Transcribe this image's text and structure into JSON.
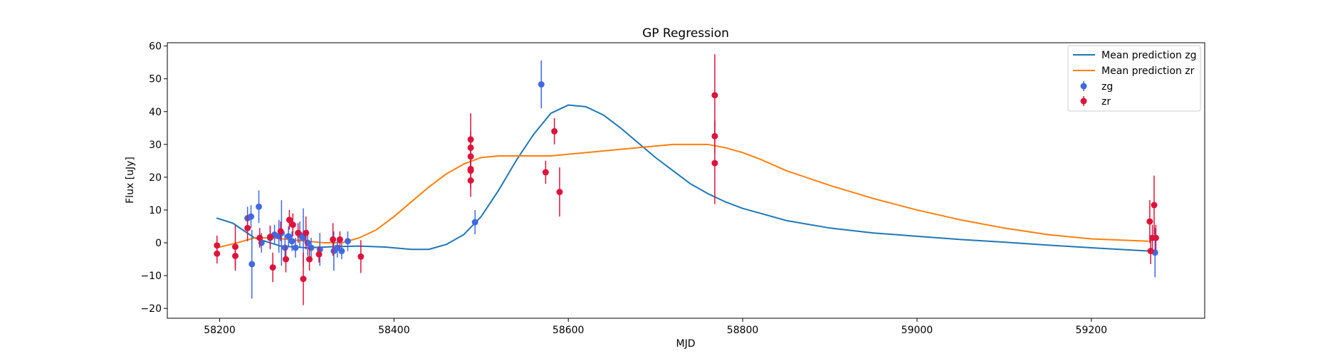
{
  "chart_data": {
    "type": "line",
    "title": "GP Regression",
    "xlabel": "MJD",
    "ylabel": "Flux [uJy]",
    "xlim": [
      58140,
      59330
    ],
    "ylim": [
      -23,
      61
    ],
    "xticks": [
      58200,
      58400,
      58600,
      58800,
      59000,
      59200
    ],
    "yticks": [
      -20,
      -10,
      0,
      10,
      20,
      30,
      40,
      50,
      60
    ],
    "grid": false,
    "legend_position": "top-right",
    "colors": {
      "mean_zg": "#1f77b4",
      "mean_zr": "#ff7f0e",
      "points_zg": "#4169e1",
      "points_zr": "#dc143c"
    },
    "series": [
      {
        "name": "Mean prediction zg",
        "kind": "line",
        "color": "#1f77b4",
        "x": [
          58197,
          58215,
          58240,
          58270,
          58300,
          58330,
          58360,
          58390,
          58420,
          58440,
          58460,
          58480,
          58500,
          58520,
          58540,
          58560,
          58580,
          58600,
          58620,
          58640,
          58660,
          58680,
          58700,
          58720,
          58740,
          58760,
          58780,
          58800,
          58850,
          58900,
          58950,
          59000,
          59050,
          59100,
          59150,
          59200,
          59265
        ],
        "y": [
          7.5,
          6,
          1.5,
          -1,
          -1.5,
          -1.2,
          -1,
          -1.3,
          -2,
          -2,
          -0.5,
          2.5,
          8,
          16,
          25,
          33,
          39.5,
          42,
          41.5,
          39,
          35,
          30.5,
          26,
          22,
          18,
          15,
          12.5,
          10.5,
          6.8,
          4.5,
          3,
          2,
          1,
          0.2,
          -0.7,
          -1.5,
          -2.5
        ]
      },
      {
        "name": "Mean prediction zr",
        "kind": "line",
        "color": "#ff7f0e",
        "x": [
          58197,
          58220,
          58240,
          58260,
          58280,
          58300,
          58320,
          58340,
          58360,
          58380,
          58400,
          58420,
          58440,
          58460,
          58480,
          58500,
          58520,
          58540,
          58560,
          58580,
          58600,
          58620,
          58640,
          58660,
          58680,
          58700,
          58720,
          58740,
          58760,
          58780,
          58800,
          58820,
          58850,
          58900,
          58950,
          59000,
          59050,
          59100,
          59150,
          59200,
          59265
        ],
        "y": [
          -1.5,
          0,
          1.5,
          1.5,
          1,
          0.5,
          0,
          0,
          1.5,
          4,
          8,
          12.5,
          17,
          21,
          24,
          26,
          26.5,
          26.5,
          26.5,
          26.5,
          27,
          27.5,
          28,
          28.5,
          29,
          29.5,
          30,
          30,
          30,
          29,
          27.5,
          25.5,
          22,
          17.5,
          13.5,
          10,
          7,
          4.5,
          2.5,
          1.2,
          0.5
        ]
      },
      {
        "name": "zg",
        "kind": "errorbar",
        "color": "#4169e1",
        "points": [
          {
            "x": 58232,
            "y": 7.5,
            "err": 3.5
          },
          {
            "x": 58236,
            "y": 8,
            "err": 3.5
          },
          {
            "x": 58237,
            "y": -6.5,
            "err": 10.5
          },
          {
            "x": 58245,
            "y": 11,
            "err": 5
          },
          {
            "x": 58248,
            "y": 0,
            "err": 3
          },
          {
            "x": 58258,
            "y": 1.5,
            "err": 3.5
          },
          {
            "x": 58263,
            "y": 2.5,
            "err": 3
          },
          {
            "x": 58268,
            "y": 2,
            "err": 5
          },
          {
            "x": 58271,
            "y": 3,
            "err": 10
          },
          {
            "x": 58275,
            "y": -1.5,
            "err": 4
          },
          {
            "x": 58279,
            "y": 2,
            "err": 3
          },
          {
            "x": 58283,
            "y": 0.5,
            "err": 3
          },
          {
            "x": 58287,
            "y": -1.5,
            "err": 3
          },
          {
            "x": 58292,
            "y": 2.5,
            "err": 4
          },
          {
            "x": 58296,
            "y": 1.5,
            "err": 9
          },
          {
            "x": 58301,
            "y": 0,
            "err": 4
          },
          {
            "x": 58305,
            "y": -1.5,
            "err": 3
          },
          {
            "x": 58315,
            "y": -2,
            "err": 5
          },
          {
            "x": 58331,
            "y": -2.5,
            "err": 6
          },
          {
            "x": 58335,
            "y": -1.5,
            "err": 3
          },
          {
            "x": 58340,
            "y": -2.5,
            "err": 2.5
          },
          {
            "x": 58347,
            "y": 0.5,
            "err": 3
          },
          {
            "x": 58493,
            "y": 6.3,
            "err": 3.7
          },
          {
            "x": 58569,
            "y": 48.3,
            "err": 7.3
          },
          {
            "x": 59273,
            "y": -3,
            "err": 7.5
          }
        ]
      },
      {
        "name": "zr",
        "kind": "errorbar",
        "color": "#dc143c",
        "points": [
          {
            "x": 58197,
            "y": -0.8,
            "err": 3
          },
          {
            "x": 58197,
            "y": -3.3,
            "err": 3
          },
          {
            "x": 58218,
            "y": -1.2,
            "err": 6.5
          },
          {
            "x": 58218,
            "y": -4,
            "err": 4.5
          },
          {
            "x": 58232,
            "y": 4.5,
            "err": 4
          },
          {
            "x": 58246,
            "y": 1.5,
            "err": 3
          },
          {
            "x": 58258,
            "y": 1.8,
            "err": 3.5
          },
          {
            "x": 58261,
            "y": -7.5,
            "err": 4.5
          },
          {
            "x": 58270,
            "y": 3.5,
            "err": 3
          },
          {
            "x": 58276,
            "y": -5,
            "err": 4
          },
          {
            "x": 58280,
            "y": 7,
            "err": 3
          },
          {
            "x": 58284,
            "y": 5.5,
            "err": 3.5
          },
          {
            "x": 58290,
            "y": 3,
            "err": 3
          },
          {
            "x": 58296,
            "y": -11,
            "err": 8
          },
          {
            "x": 58299,
            "y": 3,
            "err": 5
          },
          {
            "x": 58303,
            "y": -5,
            "err": 3.5
          },
          {
            "x": 58314,
            "y": -3.5,
            "err": 2.5
          },
          {
            "x": 58330,
            "y": 1,
            "err": 5
          },
          {
            "x": 58338,
            "y": 1,
            "err": 2.5
          },
          {
            "x": 58362,
            "y": -4.2,
            "err": 5
          },
          {
            "x": 58488,
            "y": 31.5,
            "err": 8
          },
          {
            "x": 58488,
            "y": 29,
            "err": 5
          },
          {
            "x": 58488,
            "y": 26.3,
            "err": 5
          },
          {
            "x": 58488,
            "y": 22.5,
            "err": 6
          },
          {
            "x": 58488,
            "y": 22,
            "err": 5
          },
          {
            "x": 58488,
            "y": 19,
            "err": 5
          },
          {
            "x": 58574,
            "y": 21.5,
            "err": 3.5
          },
          {
            "x": 58584,
            "y": 34,
            "err": 4
          },
          {
            "x": 58590,
            "y": 15.5,
            "err": 7.5
          },
          {
            "x": 58768,
            "y": 45,
            "err": 12.5
          },
          {
            "x": 58768,
            "y": 32.5,
            "err": 5
          },
          {
            "x": 58768,
            "y": 24.3,
            "err": 12.5
          },
          {
            "x": 59267,
            "y": 6.5,
            "err": 6.5
          },
          {
            "x": 59268,
            "y": -2.5,
            "err": 4
          },
          {
            "x": 59270,
            "y": 1.5,
            "err": 4
          },
          {
            "x": 59272,
            "y": 11.5,
            "err": 9
          },
          {
            "x": 59274,
            "y": 1.5,
            "err": 4
          }
        ]
      }
    ]
  }
}
